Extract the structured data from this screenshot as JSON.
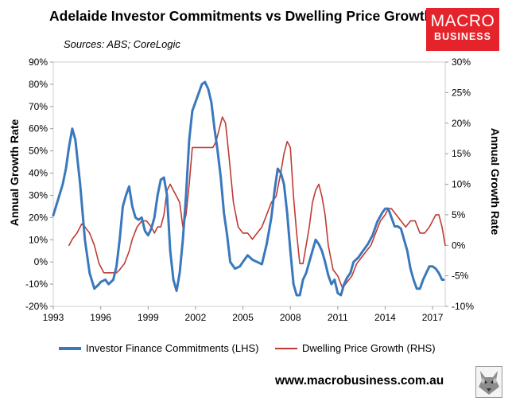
{
  "colors": {
    "investor": "#3a78bd",
    "dwelling": "#bf3b33",
    "logo_bg": "#e5232b",
    "background": "#ffffff"
  },
  "title": "Adelaide Investor Commitments vs Dwelling Price Growth",
  "subtitle": "Sources: ABS; CoreLogic",
  "logo": {
    "top": "MACRO",
    "bottom": "BUSINESS"
  },
  "website": "www.macrobusiness.com.au",
  "icons": {
    "wolf": "wolf-logo-icon"
  },
  "chart_data": {
    "type": "line",
    "title": "Adelaide Investor Commitments vs Dwelling Price Growth",
    "xlabel": "",
    "ylabel_left": "Annual Growth Rate",
    "ylabel_right": "Annual Growth Rate",
    "xlim": [
      1993,
      2017.8
    ],
    "ylim_left": [
      -20,
      90
    ],
    "ylim_right": [
      -10,
      30
    ],
    "x_ticks": [
      1993,
      1996,
      1999,
      2002,
      2005,
      2008,
      2011,
      2014,
      2017
    ],
    "x_tick_labels": [
      "1993",
      "1996",
      "1999",
      "2002",
      "2005",
      "2008",
      "2011",
      "2014",
      "2017"
    ],
    "y_left_ticks": [
      -20,
      -10,
      0,
      10,
      20,
      30,
      40,
      50,
      60,
      70,
      80,
      90
    ],
    "y_left_tick_labels": [
      "-20%",
      "-10%",
      "0%",
      "10%",
      "20%",
      "30%",
      "40%",
      "50%",
      "60%",
      "70%",
      "80%",
      "90%"
    ],
    "y_right_ticks": [
      -10,
      -5,
      0,
      5,
      10,
      15,
      20,
      25,
      30
    ],
    "y_right_tick_labels": [
      "-10%",
      "-5%",
      "0%",
      "5%",
      "10%",
      "15%",
      "20%",
      "25%",
      "30%"
    ],
    "grid": false,
    "legend_position": "bottom",
    "series": [
      {
        "name": "Investor Finance Commitments (LHS)",
        "axis": "left",
        "x": [
          1993.0,
          1993.3,
          1993.6,
          1993.8,
          1994.0,
          1994.2,
          1994.4,
          1994.7,
          1995.0,
          1995.3,
          1995.6,
          1995.9,
          1996.0,
          1996.3,
          1996.5,
          1996.8,
          1997.0,
          1997.2,
          1997.4,
          1997.6,
          1997.8,
          1998.0,
          1998.2,
          1998.4,
          1998.6,
          1998.8,
          1999.0,
          1999.2,
          1999.4,
          1999.6,
          1999.8,
          2000.0,
          2000.2,
          2000.4,
          2000.6,
          2000.8,
          2001.0,
          2001.2,
          2001.4,
          2001.6,
          2001.8,
          2002.0,
          2002.2,
          2002.4,
          2002.6,
          2002.8,
          2003.0,
          2003.2,
          2003.4,
          2003.6,
          2003.8,
          2004.0,
          2004.2,
          2004.5,
          2004.8,
          2005.0,
          2005.3,
          2005.6,
          2005.9,
          2006.2,
          2006.5,
          2006.8,
          2007.0,
          2007.2,
          2007.4,
          2007.6,
          2007.8,
          2008.0,
          2008.2,
          2008.4,
          2008.6,
          2008.8,
          2009.0,
          2009.2,
          2009.4,
          2009.6,
          2009.8,
          2010.0,
          2010.2,
          2010.4,
          2010.6,
          2010.8,
          2011.0,
          2011.2,
          2011.4,
          2011.6,
          2011.8,
          2012.0,
          2012.3,
          2012.6,
          2012.9,
          2013.2,
          2013.5,
          2013.8,
          2014.0,
          2014.2,
          2014.4,
          2014.6,
          2014.8,
          2015.0,
          2015.2,
          2015.4,
          2015.6,
          2015.8,
          2016.0,
          2016.2,
          2016.4,
          2016.6,
          2016.8,
          2017.0,
          2017.2,
          2017.4,
          2017.6,
          2017.7
        ],
        "values": [
          21,
          28,
          35,
          42,
          52,
          60,
          55,
          35,
          10,
          -5,
          -12,
          -10,
          -9,
          -8,
          -10,
          -8,
          -2,
          10,
          25,
          30,
          34,
          25,
          20,
          19,
          20,
          14,
          12,
          15,
          20,
          30,
          37,
          38,
          30,
          5,
          -8,
          -13,
          -5,
          10,
          30,
          55,
          68,
          72,
          76,
          80,
          81,
          78,
          72,
          60,
          50,
          38,
          22,
          12,
          0,
          -3,
          -2,
          0,
          3,
          1,
          0,
          -1,
          8,
          20,
          32,
          42,
          40,
          35,
          22,
          5,
          -10,
          -15,
          -15,
          -8,
          -5,
          0,
          5,
          10,
          8,
          5,
          0,
          -6,
          -10,
          -8,
          -14,
          -15,
          -10,
          -7,
          -5,
          0,
          2,
          5,
          8,
          12,
          18,
          22,
          24,
          24,
          20,
          16,
          16,
          15,
          10,
          5,
          -3,
          -8,
          -12,
          -12,
          -8,
          -5,
          -2,
          -2,
          -3,
          -5,
          -8,
          -8
        ]
      },
      {
        "name": "Dwelling Price Growth (RHS)",
        "axis": "right",
        "x": [
          1993.0,
          1993.3,
          1993.6,
          1993.8,
          1994.0,
          1994.2,
          1994.5,
          1994.8,
          1995.0,
          1995.3,
          1995.6,
          1995.9,
          1996.2,
          1996.5,
          1996.8,
          1997.0,
          1997.2,
          1997.5,
          1997.8,
          1998.0,
          1998.3,
          1998.6,
          1998.9,
          1999.2,
          1999.4,
          1999.6,
          1999.8,
          2000.0,
          2000.2,
          2000.4,
          2000.6,
          2000.8,
          2001.0,
          2001.2,
          2001.4,
          2001.6,
          2001.8,
          2002.0,
          2002.3,
          2002.6,
          2002.9,
          2003.1,
          2003.3,
          2003.5,
          2003.7,
          2003.9,
          2004.1,
          2004.4,
          2004.7,
          2005.0,
          2005.3,
          2005.6,
          2005.9,
          2006.2,
          2006.5,
          2006.8,
          2007.1,
          2007.4,
          2007.6,
          2007.8,
          2008.0,
          2008.2,
          2008.4,
          2008.6,
          2008.8,
          2009.0,
          2009.2,
          2009.4,
          2009.6,
          2009.8,
          2010.0,
          2010.2,
          2010.4,
          2010.7,
          2011.0,
          2011.3,
          2011.6,
          2011.9,
          2012.2,
          2012.5,
          2012.8,
          2013.1,
          2013.4,
          2013.7,
          2014.0,
          2014.2,
          2014.4,
          2014.7,
          2015.0,
          2015.3,
          2015.6,
          2015.9,
          2016.2,
          2016.5,
          2016.8,
          2017.0,
          2017.2,
          2017.4,
          2017.6,
          2017.8
        ],
        "values": [
          null,
          null,
          null,
          null,
          0,
          1,
          2,
          3.5,
          3,
          2,
          0,
          -3,
          -4.5,
          -4.5,
          -4.5,
          -4.5,
          -4,
          -3,
          -1,
          1,
          3,
          4,
          4,
          3,
          2,
          3,
          3,
          5,
          9,
          10,
          9,
          8,
          7,
          3,
          5,
          10,
          16,
          16,
          16,
          16,
          16,
          16,
          17,
          19,
          21,
          20,
          15,
          7,
          3,
          2,
          2,
          1,
          2,
          3,
          5,
          7,
          8,
          12,
          15,
          17,
          16,
          8,
          2,
          -3,
          -3,
          0,
          3,
          7,
          9,
          10,
          8,
          5,
          0,
          -4,
          -5,
          -7,
          -6,
          -5,
          -3,
          -2,
          -1,
          0,
          2,
          4,
          5,
          6,
          6,
          5,
          4,
          3,
          4,
          4,
          2,
          2,
          3,
          4,
          5,
          5,
          3,
          0
        ]
      }
    ]
  }
}
